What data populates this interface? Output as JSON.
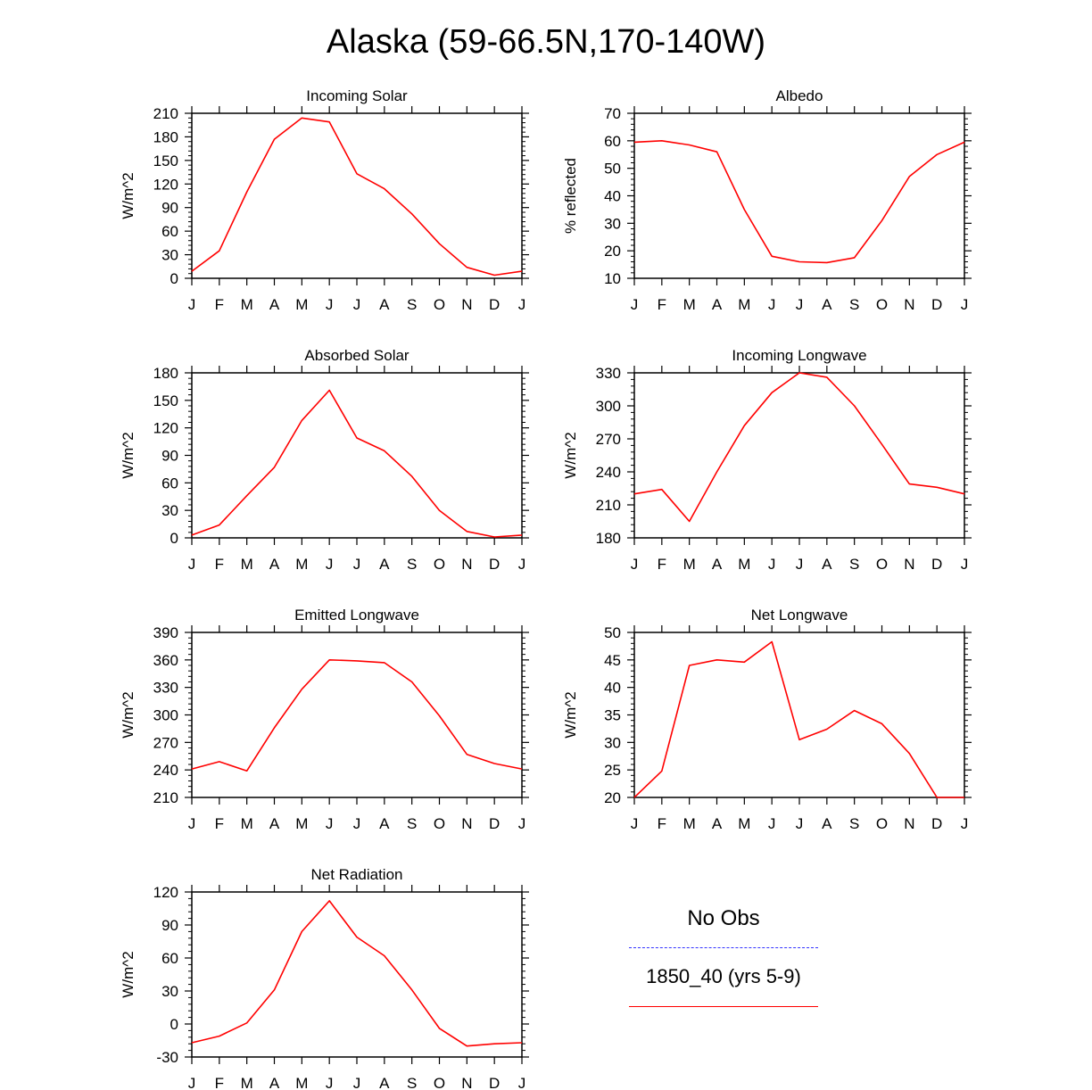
{
  "title": "Alaska (59-66.5N,170-140W)",
  "months": [
    "J",
    "F",
    "M",
    "A",
    "M",
    "J",
    "J",
    "A",
    "S",
    "O",
    "N",
    "D",
    "J"
  ],
  "colors": {
    "model": "#ff0000",
    "obs": "#3333ff"
  },
  "legend": {
    "title": "No Obs",
    "obs_line_style": "dashed",
    "model_label": "1850_40 (yrs 5-9)"
  },
  "chart_data": [
    {
      "type": "line",
      "title": "Incoming Solar",
      "ylabel": "W/m^2",
      "ylim": [
        0,
        210
      ],
      "yticks": [
        0,
        30,
        60,
        90,
        120,
        150,
        180,
        210
      ],
      "series": [
        {
          "name": "1850_40 (yrs 5-9)",
          "values": [
            9,
            35,
            110,
            177,
            204,
            199,
            133,
            114,
            82,
            44,
            14,
            4,
            9
          ]
        }
      ]
    },
    {
      "type": "line",
      "title": "Albedo",
      "ylabel": "% reflected",
      "ylim": [
        10,
        70
      ],
      "yticks": [
        10,
        20,
        30,
        40,
        50,
        60,
        70
      ],
      "series": [
        {
          "name": "1850_40 (yrs 5-9)",
          "values": [
            59.5,
            60,
            58.5,
            56,
            35,
            18,
            16,
            15.7,
            17.5,
            31,
            47,
            55,
            59.5
          ]
        }
      ]
    },
    {
      "type": "line",
      "title": "Absorbed Solar",
      "ylabel": "W/m^2",
      "ylim": [
        0,
        180
      ],
      "yticks": [
        0,
        30,
        60,
        90,
        120,
        150,
        180
      ],
      "series": [
        {
          "name": "1850_40 (yrs 5-9)",
          "values": [
            3,
            14,
            46,
            77,
            128,
            161,
            109,
            95,
            67,
            30,
            7,
            1,
            3
          ]
        }
      ]
    },
    {
      "type": "line",
      "title": "Incoming Longwave",
      "ylabel": "W/m^2",
      "ylim": [
        180,
        330
      ],
      "yticks": [
        180,
        210,
        240,
        270,
        300,
        330
      ],
      "series": [
        {
          "name": "1850_40 (yrs 5-9)",
          "values": [
            220,
            224,
            195,
            240,
            282,
            312,
            330,
            326,
            300,
            265,
            229,
            226,
            220
          ]
        }
      ]
    },
    {
      "type": "line",
      "title": "Emitted Longwave",
      "ylabel": "W/m^2",
      "ylim": [
        210,
        390
      ],
      "yticks": [
        210,
        240,
        270,
        300,
        330,
        360,
        390
      ],
      "series": [
        {
          "name": "1850_40 (yrs 5-9)",
          "values": [
            241,
            249,
            239,
            286,
            328,
            360,
            359,
            357,
            336,
            299,
            257,
            247,
            241
          ]
        }
      ]
    },
    {
      "type": "line",
      "title": "Net Longwave",
      "ylabel": "W/m^2",
      "ylim": [
        20,
        50
      ],
      "yticks": [
        20,
        25,
        30,
        35,
        40,
        45,
        50
      ],
      "series": [
        {
          "name": "1850_40 (yrs 5-9)",
          "values": [
            20,
            24.8,
            44,
            45,
            44.6,
            48.3,
            30.5,
            32.4,
            35.8,
            33.4,
            28,
            20,
            20
          ]
        }
      ]
    },
    {
      "type": "line",
      "title": "Net Radiation",
      "ylabel": "W/m^2",
      "ylim": [
        -30,
        120
      ],
      "yticks": [
        -30,
        0,
        30,
        60,
        90,
        120
      ],
      "series": [
        {
          "name": "1850_40 (yrs 5-9)",
          "values": [
            -17,
            -11,
            1,
            31,
            84,
            112,
            79,
            62,
            31,
            -4,
            -20,
            -18,
            -17
          ]
        }
      ]
    }
  ]
}
